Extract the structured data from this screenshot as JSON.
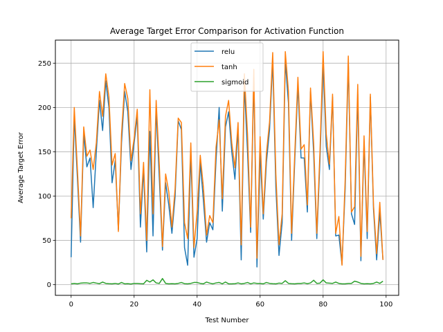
{
  "chart_data": {
    "type": "line",
    "title": "Average Target Error Comparison for Activation Function",
    "xlabel": "Test Number",
    "ylabel": "Average Target Error",
    "xlim": [
      -5,
      104
    ],
    "ylim": [
      -12,
      276
    ],
    "xticks": [
      0,
      20,
      40,
      60,
      80,
      100
    ],
    "yticks": [
      0,
      50,
      100,
      150,
      200,
      250
    ],
    "grid": true,
    "legend_position": "top-center",
    "series": [
      {
        "name": "relu",
        "color": "#1f77b4",
        "x": [
          0,
          1,
          2,
          3,
          4,
          5,
          6,
          7,
          8,
          9,
          10,
          11,
          12,
          13,
          14,
          15,
          16,
          17,
          18,
          19,
          20,
          21,
          22,
          23,
          24,
          25,
          26,
          27,
          28,
          29,
          30,
          31,
          32,
          33,
          34,
          35,
          36,
          37,
          38,
          39,
          40,
          41,
          42,
          43,
          44,
          45,
          46,
          47,
          48,
          49,
          50,
          51,
          52,
          53,
          54,
          55,
          56,
          57,
          58,
          59,
          60,
          61,
          62,
          63,
          64,
          65,
          66,
          67,
          68,
          69,
          70,
          71,
          72,
          73,
          74,
          75,
          76,
          77,
          78,
          79,
          80,
          81,
          82,
          83,
          84,
          85,
          86,
          87,
          88,
          89,
          90,
          91,
          92,
          93,
          94,
          95,
          96,
          97,
          98,
          99
        ],
        "values": [
          31,
          190,
          120,
          48,
          170,
          133,
          143,
          87,
          150,
          208,
          174,
          230,
          200,
          115,
          140,
          62,
          160,
          218,
          195,
          130,
          160,
          190,
          65,
          130,
          37,
          173,
          55,
          198,
          120,
          39,
          115,
          90,
          58,
          99,
          185,
          175,
          42,
          22,
          148,
          31,
          52,
          138,
          95,
          48,
          70,
          62,
          140,
          200,
          83,
          178,
          195,
          150,
          119,
          176,
          28,
          225,
          150,
          59,
          234,
          20,
          150,
          74,
          138,
          175,
          252,
          110,
          33,
          70,
          252,
          205,
          50,
          140,
          225,
          143,
          143,
          82,
          218,
          148,
          52,
          140,
          250,
          156,
          130,
          212,
          55,
          56,
          23,
          108,
          250,
          80,
          68,
          215,
          27,
          160,
          52,
          212,
          85,
          28,
          82,
          28
        ]
      },
      {
        "name": "tanh",
        "color": "#ff7f0e",
        "x": [
          0,
          1,
          2,
          3,
          4,
          5,
          6,
          7,
          8,
          9,
          10,
          11,
          12,
          13,
          14,
          15,
          16,
          17,
          18,
          19,
          20,
          21,
          22,
          23,
          24,
          25,
          26,
          27,
          28,
          29,
          30,
          31,
          32,
          33,
          34,
          35,
          36,
          37,
          38,
          39,
          40,
          41,
          42,
          43,
          44,
          45,
          46,
          47,
          48,
          49,
          50,
          51,
          52,
          53,
          54,
          55,
          56,
          57,
          58,
          59,
          60,
          61,
          62,
          63,
          64,
          65,
          66,
          67,
          68,
          69,
          70,
          71,
          72,
          73,
          74,
          75,
          76,
          77,
          78,
          79,
          80,
          81,
          82,
          83,
          84,
          85,
          86,
          87,
          88,
          89,
          90,
          91,
          92,
          93,
          94,
          95,
          96,
          97,
          98,
          99
        ],
        "values": [
          75,
          200,
          130,
          55,
          178,
          145,
          152,
          130,
          160,
          218,
          190,
          238,
          212,
          135,
          148,
          60,
          170,
          227,
          210,
          140,
          165,
          198,
          80,
          138,
          50,
          220,
          80,
          208,
          135,
          43,
          125,
          105,
          65,
          108,
          188,
          183,
          70,
          52,
          160,
          42,
          82,
          146,
          110,
          56,
          78,
          70,
          155,
          186,
          97,
          190,
          208,
          160,
          132,
          183,
          45,
          238,
          170,
          65,
          243,
          30,
          167,
          80,
          148,
          184,
          262,
          125,
          45,
          80,
          263,
          218,
          58,
          148,
          234,
          153,
          158,
          90,
          222,
          160,
          58,
          150,
          263,
          170,
          136,
          215,
          58,
          77,
          22,
          118,
          258,
          82,
          88,
          226,
          32,
          168,
          60,
          215,
          90,
          35,
          93,
          28
        ]
      },
      {
        "name": "sigmoid",
        "color": "#2ca02c",
        "x": [
          0,
          1,
          2,
          3,
          4,
          5,
          6,
          7,
          8,
          9,
          10,
          11,
          12,
          13,
          14,
          15,
          16,
          17,
          18,
          19,
          20,
          21,
          22,
          23,
          24,
          25,
          26,
          27,
          28,
          29,
          30,
          31,
          32,
          33,
          34,
          35,
          36,
          37,
          38,
          39,
          40,
          41,
          42,
          43,
          44,
          45,
          46,
          47,
          48,
          49,
          50,
          51,
          52,
          53,
          54,
          55,
          56,
          57,
          58,
          59,
          60,
          61,
          62,
          63,
          64,
          65,
          66,
          67,
          68,
          69,
          70,
          71,
          72,
          73,
          74,
          75,
          76,
          77,
          78,
          79,
          80,
          81,
          82,
          83,
          84,
          85,
          86,
          87,
          88,
          89,
          90,
          91,
          92,
          93,
          94,
          95,
          96,
          97,
          98,
          99
        ],
        "values": [
          1,
          1.5,
          1,
          1.8,
          2,
          2,
          1.5,
          2.5,
          1.8,
          1.2,
          3,
          1.5,
          1.2,
          1,
          1.5,
          0.8,
          2.5,
          1,
          1.2,
          0.8,
          1.5,
          1.5,
          1.2,
          1,
          5,
          3,
          5.5,
          2,
          1.5,
          7,
          1.5,
          1,
          1.2,
          1,
          1.5,
          2.5,
          1.2,
          1,
          1.5,
          2.5,
          2.5,
          1.5,
          1,
          3,
          1.8,
          1,
          2,
          2.5,
          1,
          3,
          1,
          1,
          1.2,
          2,
          1,
          1.5,
          2.5,
          1,
          2,
          1.5,
          1.5,
          1,
          2.5,
          1.5,
          1.2,
          1,
          1.8,
          1.5,
          4.5,
          1.5,
          1.2,
          1,
          1.5,
          1.5,
          2,
          1.2,
          2,
          5,
          1.5,
          1.8,
          5.5,
          2,
          1.8,
          1.5,
          3,
          1.5,
          1,
          1,
          1.5,
          1.5,
          4,
          3,
          1.5,
          1,
          1.2,
          1,
          1.5,
          3,
          1.5,
          4
        ]
      }
    ]
  }
}
